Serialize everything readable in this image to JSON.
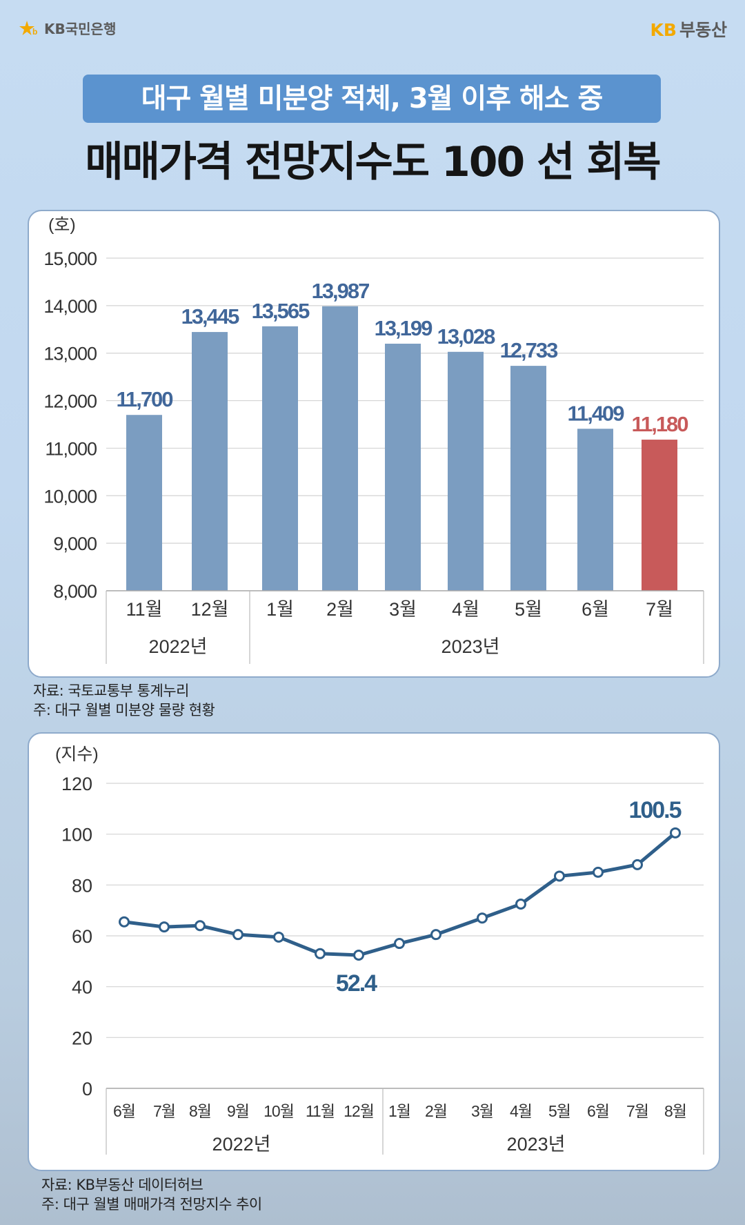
{
  "header": {
    "bank_logo_text": "KB국민은행",
    "brand_kb": "KB",
    "brand_name": "부동산",
    "subtitle": "대구 월별 미분양 적체, 3월 이후 해소 중",
    "title": "매매가격 전망지수도 100 선 회복"
  },
  "source1": {
    "line1": "자료: 국토교통부 통계누리",
    "line2": "주: 대구 월별 미분양 물량 현황"
  },
  "source2": {
    "line1": "자료: KB부동산 데이터허브",
    "line2": "주: 대구 월별 매매가격 전망지수 추이"
  },
  "chart_data": [
    {
      "type": "bar",
      "unit_label": "(호)",
      "categories": [
        "11월",
        "12월",
        "1월",
        "2월",
        "3월",
        "4월",
        "5월",
        "6월",
        "7월"
      ],
      "values": [
        11700,
        13445,
        13565,
        13987,
        13199,
        13028,
        12733,
        11409,
        11180
      ],
      "data_labels": [
        "11,700",
        "13,445",
        "13,565",
        "13,987",
        "13,199",
        "13,028",
        "12,733",
        "11,409",
        "11,180"
      ],
      "ylim": [
        8000,
        15000
      ],
      "yticks": [
        "15,000",
        "14,000",
        "13,000",
        "12,000",
        "11,000",
        "10,000",
        "9,000",
        "8,000"
      ],
      "ytick_values": [
        15000,
        14000,
        13000,
        12000,
        11000,
        10000,
        9000,
        8000
      ],
      "year_groups": [
        {
          "label": "2022년",
          "count": 2
        },
        {
          "label": "2023년",
          "count": 7
        }
      ],
      "bar_color": "#7b9dc1",
      "highlight_color": "#c85a5a",
      "highlight_index": 8,
      "grid": true
    },
    {
      "type": "line",
      "unit_label": "(지수)",
      "categories": [
        "6월",
        "7월",
        "8월",
        "9월",
        "10월",
        "11월",
        "12월",
        "1월",
        "2월",
        "3월",
        "4월",
        "5월",
        "6월",
        "7월",
        "8월"
      ],
      "values": [
        65.5,
        63.5,
        64,
        60.5,
        59.5,
        53,
        52.4,
        57,
        60.5,
        67,
        72.5,
        83.5,
        85,
        88,
        100.5
      ],
      "annotations": [
        {
          "index": 6,
          "label": "52.4"
        },
        {
          "index": 14,
          "label": "100.5"
        }
      ],
      "ylim": [
        0,
        120
      ],
      "yticks": [
        "120",
        "100",
        "80",
        "60",
        "40",
        "20",
        "0"
      ],
      "ytick_values": [
        120,
        100,
        80,
        60,
        40,
        20,
        0
      ],
      "year_groups": [
        {
          "label": "2022년",
          "count": 7
        },
        {
          "label": "2023년",
          "count": 8
        }
      ],
      "line_color": "#2f5f8a",
      "grid": true
    }
  ]
}
